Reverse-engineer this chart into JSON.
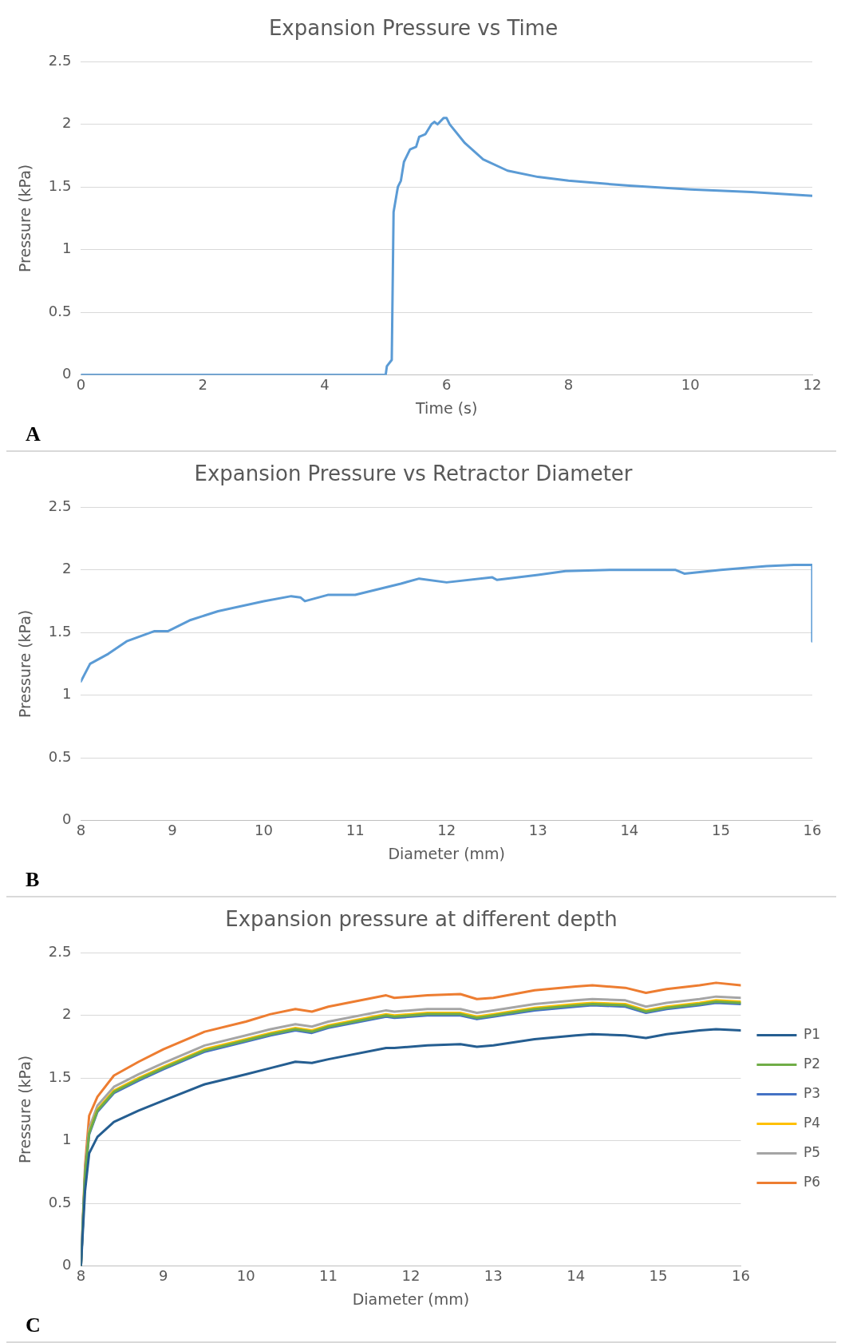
{
  "chart_data": [
    {
      "type": "line",
      "title": "Expansion Pressure vs Time",
      "xlabel": "Time (s)",
      "ylabel": "Pressure (kPa)",
      "xlim": [
        0,
        12
      ],
      "ylim": [
        0,
        2.5
      ],
      "xticks": [
        0,
        2,
        4,
        6,
        8,
        10,
        12
      ],
      "yticks": [
        0,
        0.5,
        1,
        1.5,
        2,
        2.5
      ],
      "grid": "y",
      "marker": "none",
      "annotations": [
        "A"
      ],
      "series": [
        {
          "color": "#5b9bd5",
          "x": [
            0,
            5.0,
            5.02,
            5.1,
            5.13,
            5.2,
            5.25,
            5.3,
            5.4,
            5.5,
            5.55,
            5.65,
            5.75,
            5.8,
            5.85,
            5.95,
            6.0,
            6.05,
            6.3,
            6.6,
            7,
            7.5,
            8,
            9,
            10,
            11,
            12
          ],
          "values": [
            0,
            0,
            0.07,
            0.12,
            1.3,
            1.5,
            1.55,
            1.7,
            1.8,
            1.82,
            1.9,
            1.92,
            2.0,
            2.02,
            2.0,
            2.05,
            2.05,
            2.0,
            1.85,
            1.72,
            1.63,
            1.58,
            1.55,
            1.51,
            1.48,
            1.46,
            1.43
          ]
        }
      ]
    },
    {
      "type": "line",
      "title": "Expansion Pressure vs Retractor Diameter",
      "xlabel": "Diameter (mm)",
      "ylabel": "Pressure (kPa)",
      "xlim": [
        8,
        16
      ],
      "ylim": [
        0,
        2.5
      ],
      "xticks": [
        8,
        9,
        10,
        11,
        12,
        13,
        14,
        15,
        16
      ],
      "yticks": [
        0,
        0.5,
        1,
        1.5,
        2,
        2.5
      ],
      "grid": "y",
      "marker": "none",
      "annotations": [
        "B"
      ],
      "series": [
        {
          "color": "#5b9bd5",
          "x": [
            8,
            8.1,
            8.3,
            8.5,
            8.8,
            8.95,
            9.2,
            9.5,
            10,
            10.3,
            10.4,
            10.45,
            10.7,
            11,
            11.5,
            11.7,
            12,
            12.5,
            12.55,
            13,
            13.3,
            13.8,
            14.5,
            14.6,
            15,
            15.5,
            15.8,
            16,
            16,
            16
          ],
          "values": [
            1.11,
            1.25,
            1.33,
            1.43,
            1.51,
            1.51,
            1.6,
            1.67,
            1.75,
            1.79,
            1.78,
            1.75,
            1.8,
            1.8,
            1.89,
            1.93,
            1.9,
            1.94,
            1.92,
            1.96,
            1.99,
            2.0,
            2.0,
            1.97,
            2.0,
            2.03,
            2.04,
            2.04,
            2.0,
            1.43
          ]
        }
      ]
    },
    {
      "type": "line",
      "title": "Expansion pressure at different depth",
      "xlabel": "Diameter (mm)",
      "ylabel": "Pressure (kPa)",
      "xlim": [
        8,
        16
      ],
      "ylim": [
        0,
        2.5
      ],
      "xticks": [
        8,
        9,
        10,
        11,
        12,
        13,
        14,
        15,
        16
      ],
      "yticks": [
        0,
        0.5,
        1,
        1.5,
        2,
        2.5
      ],
      "grid": "y",
      "marker": "none",
      "legend": "right",
      "annotations": [
        "C"
      ],
      "x": [
        8,
        8.05,
        8.1,
        8.2,
        8.4,
        8.7,
        9,
        9.5,
        10,
        10.3,
        10.6,
        10.8,
        11,
        11.7,
        11.8,
        12.2,
        12.6,
        12.8,
        13,
        13.5,
        14,
        14.2,
        14.6,
        14.85,
        15.1,
        15.5,
        15.7,
        16
      ],
      "series": [
        {
          "name": "P1",
          "color": "#255e91",
          "values": [
            0,
            0.6,
            0.9,
            1.03,
            1.15,
            1.24,
            1.32,
            1.45,
            1.53,
            1.58,
            1.63,
            1.62,
            1.65,
            1.74,
            1.74,
            1.76,
            1.77,
            1.75,
            1.76,
            1.81,
            1.84,
            1.85,
            1.84,
            1.82,
            1.85,
            1.88,
            1.89,
            1.88
          ]
        },
        {
          "name": "P2",
          "color": "#70ad47",
          "values": [
            0,
            0.73,
            1.06,
            1.24,
            1.39,
            1.49,
            1.58,
            1.72,
            1.8,
            1.85,
            1.89,
            1.87,
            1.91,
            2.0,
            1.99,
            2.01,
            2.01,
            1.98,
            2.0,
            2.05,
            2.08,
            2.09,
            2.08,
            2.03,
            2.06,
            2.09,
            2.11,
            2.1
          ]
        },
        {
          "name": "P3",
          "color": "#4472c4",
          "values": [
            0,
            0.72,
            1.05,
            1.23,
            1.38,
            1.48,
            1.57,
            1.71,
            1.79,
            1.84,
            1.88,
            1.86,
            1.9,
            1.99,
            1.98,
            2.0,
            2.0,
            1.97,
            1.99,
            2.04,
            2.07,
            2.08,
            2.07,
            2.02,
            2.05,
            2.08,
            2.1,
            2.09
          ]
        },
        {
          "name": "P4",
          "color": "#ffc000",
          "values": [
            null,
            null,
            1.07,
            1.25,
            1.4,
            1.5,
            1.59,
            1.73,
            1.81,
            1.86,
            1.9,
            1.88,
            1.92,
            2.01,
            2.0,
            2.02,
            2.02,
            1.99,
            2.01,
            2.06,
            2.09,
            2.1,
            2.09,
            2.04,
            2.07,
            2.1,
            2.12,
            2.11
          ]
        },
        {
          "name": "P5",
          "color": "#a5a5a5",
          "values": [
            0,
            0.75,
            1.1,
            1.28,
            1.43,
            1.53,
            1.62,
            1.76,
            1.84,
            1.89,
            1.93,
            1.91,
            1.95,
            2.04,
            2.03,
            2.05,
            2.05,
            2.02,
            2.04,
            2.09,
            2.12,
            2.13,
            2.12,
            2.07,
            2.1,
            2.13,
            2.15,
            2.14
          ]
        },
        {
          "name": "P6",
          "color": "#ed7d31",
          "values": [
            0,
            0.8,
            1.2,
            1.35,
            1.52,
            1.63,
            1.73,
            1.87,
            1.95,
            2.01,
            2.05,
            2.03,
            2.07,
            2.16,
            2.14,
            2.16,
            2.17,
            2.13,
            2.14,
            2.2,
            2.23,
            2.24,
            2.22,
            2.18,
            2.21,
            2.24,
            2.26,
            2.24
          ]
        }
      ]
    }
  ]
}
